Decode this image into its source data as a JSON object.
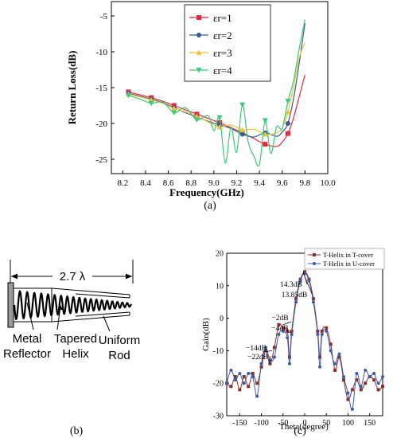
{
  "figure": {
    "caption_a": "(a)",
    "caption_b": "(b)",
    "caption_c": "(c)"
  },
  "diagram": {
    "length_label": "2.7 λ",
    "reflector_label": "Metal Reflector",
    "helix_label": "Tapered Helix",
    "rod_label": "Uniform Rod"
  },
  "chart_data": [
    {
      "type": "line",
      "xlabel": "Frequency(GHz)",
      "ylabel": "Return Loss(dB)",
      "xlim": [
        8.1,
        10.0
      ],
      "ylim": [
        -27,
        -3
      ],
      "xticks": [
        8.2,
        8.4,
        8.6,
        8.8,
        9.0,
        9.2,
        9.4,
        9.6,
        9.8,
        10.0
      ],
      "yticks": [
        -25,
        -20,
        -15,
        -10,
        -5
      ],
      "grid": false,
      "legend_position": "top-right",
      "series": [
        {
          "name": "εr=1",
          "color": "#e8283c",
          "marker": "square",
          "points": [
            [
              8.25,
              -15.6
            ],
            [
              8.35,
              -16.0
            ],
            [
              8.45,
              -16.4
            ],
            [
              8.55,
              -16.9
            ],
            [
              8.65,
              -17.5
            ],
            [
              8.75,
              -18.1
            ],
            [
              8.85,
              -18.7
            ],
            [
              8.95,
              -19.3
            ],
            [
              9.05,
              -19.9
            ],
            [
              9.15,
              -20.6
            ],
            [
              9.25,
              -21.3
            ],
            [
              9.35,
              -22.1
            ],
            [
              9.45,
              -22.9
            ],
            [
              9.55,
              -23.2
            ],
            [
              9.6,
              -22.6
            ],
            [
              9.65,
              -21.4
            ],
            [
              9.7,
              -19.2
            ],
            [
              9.75,
              -16.2
            ],
            [
              9.8,
              -13.2
            ]
          ]
        },
        {
          "name": "εr=2",
          "color": "#3a5a92",
          "marker": "circle",
          "points": [
            [
              8.25,
              -15.8
            ],
            [
              8.35,
              -16.2
            ],
            [
              8.45,
              -16.6
            ],
            [
              8.55,
              -17.1
            ],
            [
              8.65,
              -17.8
            ],
            [
              8.75,
              -18.5
            ],
            [
              8.85,
              -19.1
            ],
            [
              8.95,
              -19.7
            ],
            [
              9.05,
              -20.2
            ],
            [
              9.15,
              -20.7
            ],
            [
              9.25,
              -21.5
            ],
            [
              9.35,
              -21.9
            ],
            [
              9.45,
              -21.3
            ],
            [
              9.55,
              -21.8
            ],
            [
              9.6,
              -21.2
            ],
            [
              9.65,
              -20.0
            ],
            [
              9.7,
              -16.5
            ],
            [
              9.75,
              -11.5
            ],
            [
              9.8,
              -6.0
            ]
          ]
        },
        {
          "name": "εr=3",
          "color": "#f0c23a",
          "marker": "triangle-up",
          "points": [
            [
              8.25,
              -15.9
            ],
            [
              8.35,
              -16.3
            ],
            [
              8.45,
              -16.7
            ],
            [
              8.55,
              -17.2
            ],
            [
              8.65,
              -17.9
            ],
            [
              8.75,
              -18.4
            ],
            [
              8.85,
              -19.0
            ],
            [
              8.95,
              -19.8
            ],
            [
              9.05,
              -20.5
            ],
            [
              9.15,
              -20.2
            ],
            [
              9.25,
              -20.9
            ],
            [
              9.35,
              -20.8
            ],
            [
              9.45,
              -21.5
            ],
            [
              9.55,
              -21.3
            ],
            [
              9.6,
              -20.6
            ],
            [
              9.65,
              -18.4
            ],
            [
              9.7,
              -14.8
            ],
            [
              9.75,
              -10.8
            ],
            [
              9.8,
              -8.7
            ]
          ]
        },
        {
          "name": "εr=4",
          "color": "#3cc878",
          "marker": "triangle-down",
          "points": [
            [
              8.25,
              -16.1
            ],
            [
              8.35,
              -16.6
            ],
            [
              8.45,
              -17.2
            ],
            [
              8.55,
              -17.0
            ],
            [
              8.65,
              -18.5
            ],
            [
              8.75,
              -17.8
            ],
            [
              8.85,
              -19.5
            ],
            [
              8.95,
              -18.9
            ],
            [
              9.0,
              -21.0
            ],
            [
              9.05,
              -19.2
            ],
            [
              9.1,
              -25.5
            ],
            [
              9.15,
              -20.5
            ],
            [
              9.2,
              -24.0
            ],
            [
              9.25,
              -17.4
            ],
            [
              9.3,
              -22.5
            ],
            [
              9.35,
              -24.5
            ],
            [
              9.4,
              -25.7
            ],
            [
              9.45,
              -19.6
            ],
            [
              9.5,
              -24.2
            ],
            [
              9.55,
              -20.5
            ],
            [
              9.6,
              -20.7
            ],
            [
              9.65,
              -16.9
            ],
            [
              9.7,
              -14.0
            ],
            [
              9.75,
              -9.5
            ],
            [
              9.8,
              -5.5
            ]
          ]
        }
      ]
    },
    {
      "type": "line",
      "xlabel": "Theta(degree)",
      "ylabel": "Gain(dB)",
      "xlim": [
        -180,
        180
      ],
      "ylim": [
        -30,
        20
      ],
      "xticks": [
        -150,
        -100,
        -50,
        0,
        50,
        100,
        150
      ],
      "yticks": [
        -30,
        -20,
        -10,
        0,
        10,
        20
      ],
      "grid": false,
      "legend_position": "top-right",
      "annotations": [
        "14.3dB",
        "13.85dB",
        "−2dB",
        "−4dB",
        "−14dB",
        "−22dB"
      ],
      "series": [
        {
          "name": "T-Helix in T-cover",
          "color": "#8b2f2f",
          "marker": "square",
          "points": [
            [
              -180,
              -20
            ],
            [
              -170,
              -21
            ],
            [
              -160,
              -18
            ],
            [
              -150,
              -22
            ],
            [
              -140,
              -18
            ],
            [
              -130,
              -21
            ],
            [
              -120,
              -17
            ],
            [
              -110,
              -20
            ],
            [
              -100,
              -15
            ],
            [
              -90,
              -10
            ],
            [
              -80,
              -14
            ],
            [
              -70,
              -9
            ],
            [
              -60,
              -2
            ],
            [
              -50,
              -3
            ],
            [
              -40,
              -4
            ],
            [
              -35,
              -12
            ],
            [
              -30,
              -4
            ],
            [
              -20,
              6
            ],
            [
              -10,
              12
            ],
            [
              0,
              14.3
            ],
            [
              10,
              12
            ],
            [
              20,
              6
            ],
            [
              30,
              -4
            ],
            [
              35,
              -12
            ],
            [
              40,
              -4
            ],
            [
              50,
              -3
            ],
            [
              60,
              -8
            ],
            [
              70,
              -16
            ],
            [
              80,
              -12
            ],
            [
              90,
              -19
            ],
            [
              100,
              -25
            ],
            [
              110,
              -22
            ],
            [
              120,
              -19
            ],
            [
              130,
              -22
            ],
            [
              140,
              -20
            ],
            [
              150,
              -18
            ],
            [
              160,
              -19
            ],
            [
              170,
              -22
            ],
            [
              180,
              -21
            ]
          ]
        },
        {
          "name": "T-Helix in U-cover",
          "color": "#3b5ba8",
          "marker": "circle",
          "points": [
            [
              -180,
              -20
            ],
            [
              -170,
              -16
            ],
            [
              -160,
              -19
            ],
            [
              -150,
              -17
            ],
            [
              -140,
              -20
            ],
            [
              -130,
              -17
            ],
            [
              -120,
              -18
            ],
            [
              -110,
              -24
            ],
            [
              -100,
              -14
            ],
            [
              -90,
              -9
            ],
            [
              -80,
              -13
            ],
            [
              -70,
              -12
            ],
            [
              -60,
              -5
            ],
            [
              -50,
              -4
            ],
            [
              -40,
              -6
            ],
            [
              -35,
              -14
            ],
            [
              -30,
              -5
            ],
            [
              -20,
              5
            ],
            [
              -10,
              11.5
            ],
            [
              0,
              13.85
            ],
            [
              10,
              11.5
            ],
            [
              20,
              5
            ],
            [
              30,
              -5
            ],
            [
              35,
              -15
            ],
            [
              40,
              -5
            ],
            [
              50,
              -4
            ],
            [
              60,
              -10
            ],
            [
              70,
              -14
            ],
            [
              80,
              -11
            ],
            [
              90,
              -18
            ],
            [
              100,
              -23
            ],
            [
              110,
              -28
            ],
            [
              120,
              -17
            ],
            [
              130,
              -21
            ],
            [
              140,
              -16
            ],
            [
              150,
              -18
            ],
            [
              160,
              -17
            ],
            [
              170,
              -20
            ],
            [
              180,
              -18
            ]
          ]
        }
      ]
    }
  ]
}
